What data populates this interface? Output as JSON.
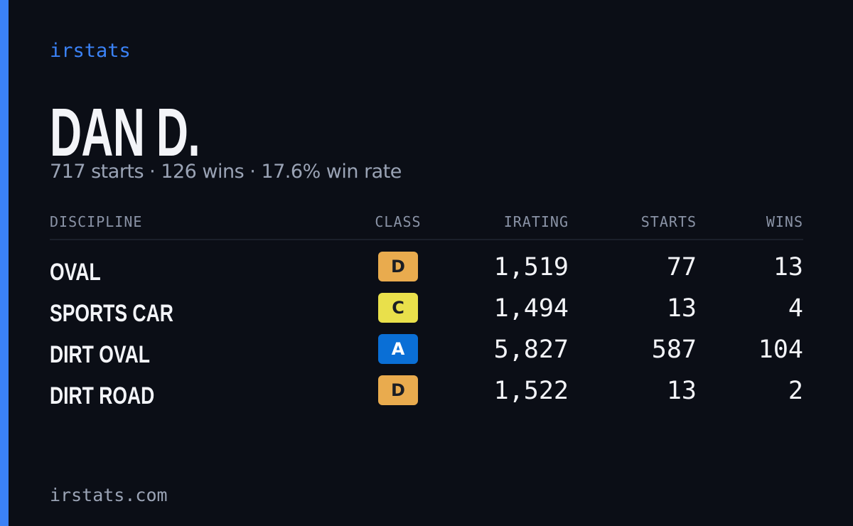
{
  "brand": "irstats",
  "driver": {
    "name": "DAN D.",
    "summary": "717 starts · 126 wins · 17.6% win rate"
  },
  "table": {
    "headers": [
      "DISCIPLINE",
      "CLASS",
      "IRATING",
      "STARTS",
      "WINS"
    ],
    "rows": [
      {
        "discipline": "OVAL",
        "class": "D",
        "class_color": "#e9ab4e",
        "irating": "1,519",
        "starts": "77",
        "wins": "13"
      },
      {
        "discipline": "SPORTS CAR",
        "class": "C",
        "class_color": "#e9e04b",
        "irating": "1,494",
        "starts": "13",
        "wins": "4"
      },
      {
        "discipline": "DIRT OVAL",
        "class": "A",
        "class_color": "#0a6fd6",
        "irating": "5,827",
        "starts": "587",
        "wins": "104"
      },
      {
        "discipline": "DIRT ROAD",
        "class": "D",
        "class_color": "#e9ab4e",
        "irating": "1,522",
        "starts": "13",
        "wins": "2"
      }
    ]
  },
  "footer": "irstats.com"
}
